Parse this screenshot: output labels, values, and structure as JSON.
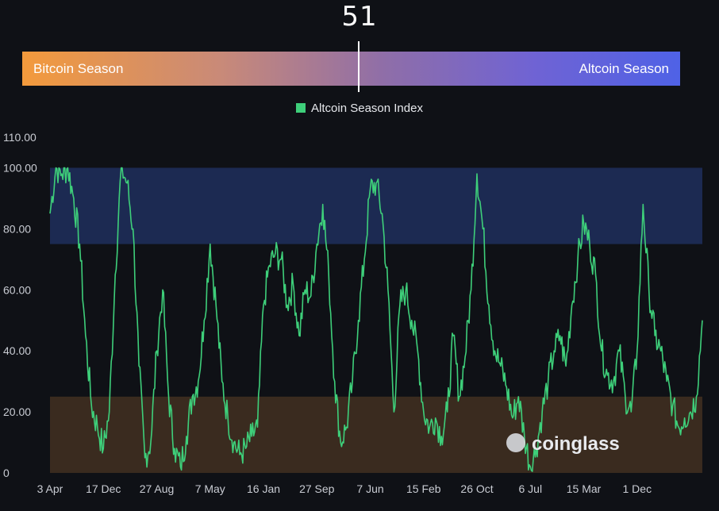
{
  "header": {
    "index_value": "51",
    "bitcoin_label": "Bitcoin Season",
    "altcoin_label": "Altcoin Season",
    "marker_value": 51
  },
  "legend": {
    "label": "Altcoin Season Index",
    "color": "#3ecf7a"
  },
  "watermark": "coinglass",
  "colors": {
    "line": "#3ecf7a",
    "altcoin_zone": "#1c2a52",
    "bitcoin_zone": "#3a2b1f",
    "bar_start": "#f39a3c",
    "bar_end": "#4f62e6",
    "background": "#0f1116"
  },
  "chart_data": {
    "type": "line",
    "title": "",
    "xlabel": "",
    "ylabel": "",
    "ylim": [
      0,
      110
    ],
    "y_ticks": [
      "0",
      "20.00",
      "40.00",
      "60.00",
      "80.00",
      "100.00",
      "110.00"
    ],
    "y_tick_values": [
      0,
      20,
      40,
      60,
      80,
      100,
      110
    ],
    "x_ticks": [
      "3 Apr",
      "17 Dec",
      "27 Aug",
      "7 May",
      "16 Jan",
      "27 Sep",
      "7 Jun",
      "15 Feb",
      "26 Oct",
      "6 Jul",
      "15 Mar",
      "1 Dec"
    ],
    "x_tick_index": [
      0,
      9,
      18,
      27,
      36,
      45,
      54,
      63,
      72,
      81,
      90,
      99
    ],
    "bands": [
      {
        "name": "altcoin season",
        "from": 75,
        "to": 100
      },
      {
        "name": "bitcoin season",
        "from": 0,
        "to": 25
      }
    ],
    "grid": false,
    "legend_position": "top-center",
    "series": [
      {
        "name": "Altcoin Season Index",
        "values": [
          85,
          100,
          98,
          100,
          90,
          75,
          45,
          22,
          15,
          8,
          20,
          65,
          100,
          95,
          80,
          35,
          5,
          10,
          40,
          60,
          25,
          8,
          2,
          12,
          25,
          30,
          50,
          75,
          55,
          30,
          18,
          10,
          6,
          8,
          12,
          15,
          55,
          68,
          72,
          70,
          55,
          62,
          45,
          60,
          58,
          75,
          88,
          65,
          30,
          10,
          15,
          30,
          50,
          70,
          93,
          95,
          85,
          60,
          20,
          55,
          60,
          50,
          40,
          20,
          15,
          18,
          12,
          20,
          45,
          25,
          38,
          60,
          98,
          80,
          55,
          40,
          35,
          28,
          18,
          25,
          12,
          2,
          8,
          20,
          30,
          40,
          45,
          35,
          55,
          70,
          82,
          75,
          65,
          40,
          32,
          30,
          40,
          25,
          20,
          40,
          88,
          60,
          45,
          40,
          30,
          22,
          15,
          18,
          20,
          25,
          50
        ]
      }
    ]
  }
}
